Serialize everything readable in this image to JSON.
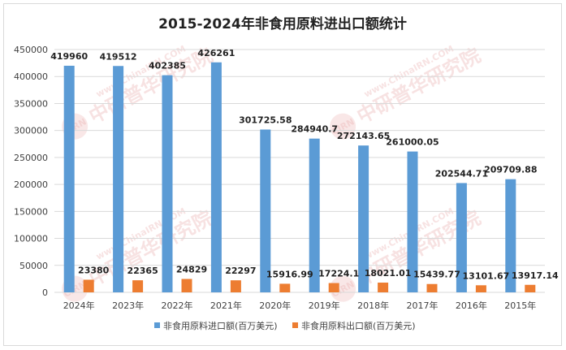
{
  "chart_data": {
    "type": "bar",
    "title": "2015-2024年非食用原料进出口额统计",
    "categories": [
      "2024年",
      "2023年",
      "2022年",
      "2021年",
      "2020年",
      "2019年",
      "2018年",
      "2017年",
      "2016年",
      "2015年"
    ],
    "series": [
      {
        "name": "非食用原料进口额(百万美元)",
        "color": "#5b9bd5",
        "values": [
          419960,
          419512,
          402385,
          426261,
          301725.58,
          284940.7,
          272143.65,
          261000.05,
          202544.71,
          209709.88
        ],
        "labels": [
          "419960",
          "419512",
          "402385",
          "426261",
          "301725.58",
          "284940.7",
          "272143.65",
          "261000.05",
          "202544.71",
          "209709.88"
        ]
      },
      {
        "name": "非食用原料出口额(百万美元)",
        "color": "#ed7d31",
        "values": [
          23380,
          22365,
          24829,
          22297,
          15916.99,
          17224.1,
          18021.01,
          15439.77,
          13101.67,
          13917.14
        ],
        "labels": [
          "23380",
          "22365",
          "24829",
          "22297",
          "15916.99",
          "17224.1",
          "18021.01",
          "15439.77",
          "13101.67",
          "13917.14"
        ]
      }
    ],
    "ylim": [
      0,
      450000
    ],
    "yticks": [
      0,
      50000,
      100000,
      150000,
      200000,
      250000,
      300000,
      350000,
      400000,
      450000
    ],
    "ytick_labels": [
      "0",
      "50000",
      "100000",
      "150000",
      "200000",
      "250000",
      "300000",
      "350000",
      "400000",
      "450000"
    ],
    "grid": true,
    "legend_position": "bottom"
  },
  "watermark": {
    "logo_text": "CIRN",
    "cn_text": "中研普华研究院",
    "en_text": "www.ChinaIRN.COM"
  }
}
